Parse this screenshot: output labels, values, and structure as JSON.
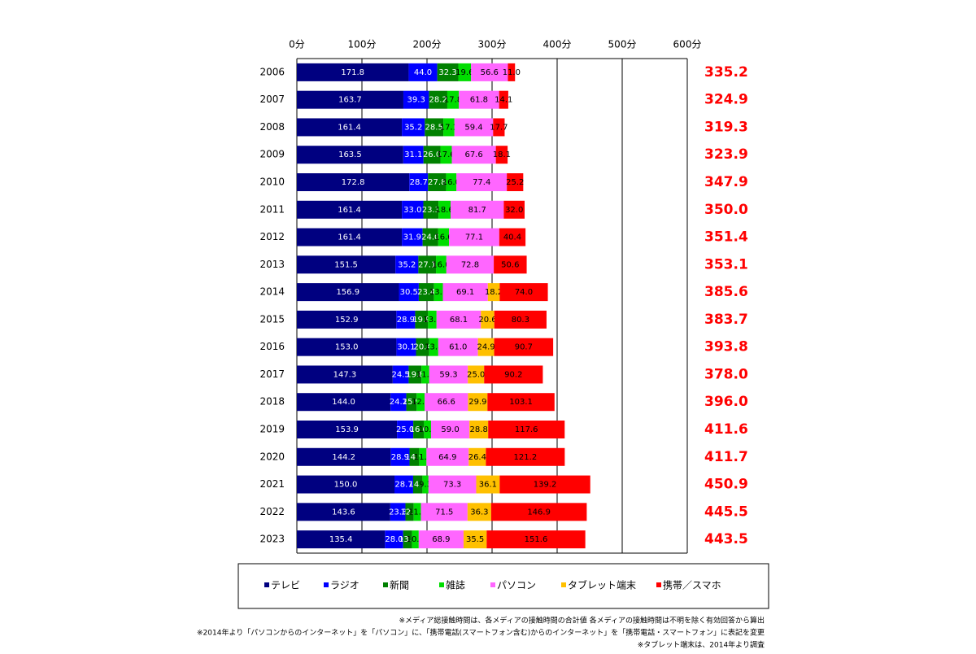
{
  "chart_data": {
    "type": "stacked-bar-horizontal",
    "categories": [
      "2006",
      "2007",
      "2008",
      "2009",
      "2010",
      "2011",
      "2012",
      "2013",
      "2014",
      "2015",
      "2016",
      "2017",
      "2018",
      "2019",
      "2020",
      "2021",
      "2022",
      "2023"
    ],
    "xlim": [
      0,
      600
    ],
    "xticks": [
      {
        "value": 0,
        "label": "0分"
      },
      {
        "value": 100,
        "label": "100分"
      },
      {
        "value": 200,
        "label": "200分"
      },
      {
        "value": 300,
        "label": "300分"
      },
      {
        "value": 400,
        "label": "400分"
      },
      {
        "value": 500,
        "label": "500分"
      },
      {
        "value": 600,
        "label": "600分"
      }
    ],
    "grid": true,
    "series": [
      {
        "name": "テレビ",
        "color": "#000080",
        "label_color": "#ffffff",
        "values": [
          171.8,
          163.7,
          161.4,
          163.5,
          172.8,
          161.4,
          161.4,
          151.5,
          156.9,
          152.9,
          153.0,
          147.3,
          144.0,
          153.9,
          144.2,
          150.0,
          143.6,
          135.4
        ],
        "value_labels": [
          "171.8",
          "163.7",
          "161.4",
          "163.5",
          "172.8",
          "161.4",
          "161.4",
          "151.5",
          "156.9",
          "152.9",
          "153.0",
          "147.3",
          "144.0",
          "153.9",
          "144.2",
          "150.0",
          "143.6",
          "135.4"
        ]
      },
      {
        "name": "ラジオ",
        "color": "#0000ff",
        "label_color": "#ffffff",
        "values": [
          44.0,
          39.3,
          35.2,
          31.1,
          28.7,
          33.0,
          31.9,
          35.2,
          30.5,
          28.9,
          30.1,
          24.5,
          24.2,
          25.0,
          28.9,
          28.7,
          23.3,
          28.0
        ],
        "value_labels": [
          "44.0",
          "39.3",
          "35.2",
          "31.1",
          "28.7",
          "33.0",
          "31.9",
          "35.2",
          "30.5",
          "28.9",
          "30.1",
          "24.5",
          "24.2",
          "25.0",
          "28.9",
          "28.7",
          "23.3",
          "28.0"
        ]
      },
      {
        "name": "新聞",
        "color": "#008000",
        "label_color": "#ffffff",
        "values": [
          32.3,
          28.2,
          28.5,
          26.0,
          27.8,
          23.3,
          24.0,
          27.1,
          23.4,
          19.9,
          20.4,
          19.8,
          15.9,
          16.6,
          14.9,
          14.3,
          12.7,
          13.6
        ],
        "value_labels": [
          "32.3",
          "28.2",
          "28.5",
          "26.0",
          "27.8",
          "23.3",
          "24.0",
          "27.1",
          "23.4",
          "19.9",
          "20.4",
          "19.8",
          "15.9",
          "16.6",
          "14.9",
          "14.3",
          "12.7",
          "13.6"
        ]
      },
      {
        "name": "雑誌",
        "color": "#00dd00",
        "label_color": "#000000",
        "values": [
          19.6,
          17.8,
          17.1,
          17.6,
          16.0,
          18.6,
          16.6,
          16.0,
          13.6,
          13.0,
          13.8,
          11.9,
          12.3,
          10.7,
          11.2,
          9.3,
          11.2,
          10.3
        ],
        "value_labels": [
          "19.6",
          "17.8",
          "17.1",
          "17.6",
          "16.0",
          "18.6",
          "16.6",
          "16.0",
          "13.6",
          "13.0",
          "13.8",
          "11.9",
          "12.3",
          "10.7",
          "11.2",
          "9.3",
          "11.2",
          "10.3"
        ]
      },
      {
        "name": "パソコン",
        "color": "#ff66ff",
        "label_color": "#000000",
        "values": [
          56.6,
          61.8,
          59.4,
          67.6,
          77.4,
          81.7,
          77.1,
          72.8,
          69.1,
          68.1,
          61.0,
          59.3,
          66.6,
          59.0,
          64.9,
          73.3,
          71.5,
          68.9
        ],
        "value_labels": [
          "56.6",
          "61.8",
          "59.4",
          "67.6",
          "77.4",
          "81.7",
          "77.1",
          "72.8",
          "69.1",
          "68.1",
          "61.0",
          "59.3",
          "66.6",
          "59.0",
          "64.9",
          "73.3",
          "71.5",
          "68.9"
        ]
      },
      {
        "name": "タブレット端末",
        "color": "#ffc000",
        "label_color": "#000000",
        "values": [
          null,
          null,
          null,
          null,
          null,
          null,
          null,
          null,
          18.2,
          20.6,
          24.9,
          25.0,
          29.9,
          28.8,
          26.4,
          36.1,
          36.3,
          35.5
        ],
        "value_labels": [
          null,
          null,
          null,
          null,
          null,
          null,
          null,
          null,
          "18.2",
          "20.6",
          "24.9",
          "25.0",
          "29.9",
          "28.8",
          "26.4",
          "36.1",
          "36.3",
          "35.5"
        ]
      },
      {
        "name": "携帯／スマホ",
        "color": "#ff0000",
        "label_color": "#000000",
        "values": [
          11.0,
          14.1,
          17.7,
          18.1,
          25.2,
          32.0,
          40.4,
          50.6,
          74.0,
          80.3,
          90.7,
          90.2,
          103.1,
          117.6,
          121.2,
          139.2,
          146.9,
          151.6
        ],
        "value_labels": [
          "11.0",
          "14.1",
          "17.7",
          "18.1",
          "25.2",
          "32.0",
          "40.4",
          "50.6",
          "74.0",
          "80.3",
          "90.7",
          "90.2",
          "103.1",
          "117.6",
          "121.2",
          "139.2",
          "146.9",
          "151.6"
        ]
      }
    ],
    "totals": {
      "color": "#ff0000",
      "values": [
        335.2,
        324.9,
        319.3,
        323.9,
        347.9,
        350.0,
        351.4,
        353.1,
        385.6,
        383.7,
        393.8,
        378.0,
        396.0,
        411.6,
        411.7,
        450.9,
        445.5,
        443.5
      ],
      "value_labels": [
        "335.2",
        "324.9",
        "319.3",
        "323.9",
        "347.9",
        "350.0",
        "351.4",
        "353.1",
        "385.6",
        "383.7",
        "393.8",
        "378.0",
        "396.0",
        "411.6",
        "411.7",
        "450.9",
        "445.5",
        "443.5"
      ]
    },
    "notes": [
      "※メディア総接触時間は、各メディアの接触時間の合計値 各メディアの接触時間は不明を除く有効回答から算出",
      "※2014年より「パソコンからのインターネット」を「パソコン」に、「携帯電話(スマートフォン含む)からのインターネット」を「携帯電話・スマートフォン」に表記を変更",
      "※タブレット端末は、2014年より調査"
    ]
  }
}
